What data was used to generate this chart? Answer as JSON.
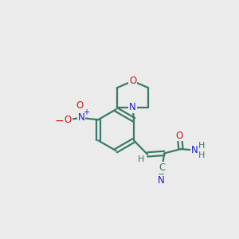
{
  "bg_color": "#ebebeb",
  "bond_color": "#3a7a6a",
  "N_color": "#1a1acc",
  "O_color": "#cc1a1a",
  "lw": 1.6,
  "fs": 8.5,
  "fig_w": 3.0,
  "fig_h": 3.0,
  "dpi": 100,
  "xlim": [
    0,
    10
  ],
  "ylim": [
    0,
    10
  ]
}
